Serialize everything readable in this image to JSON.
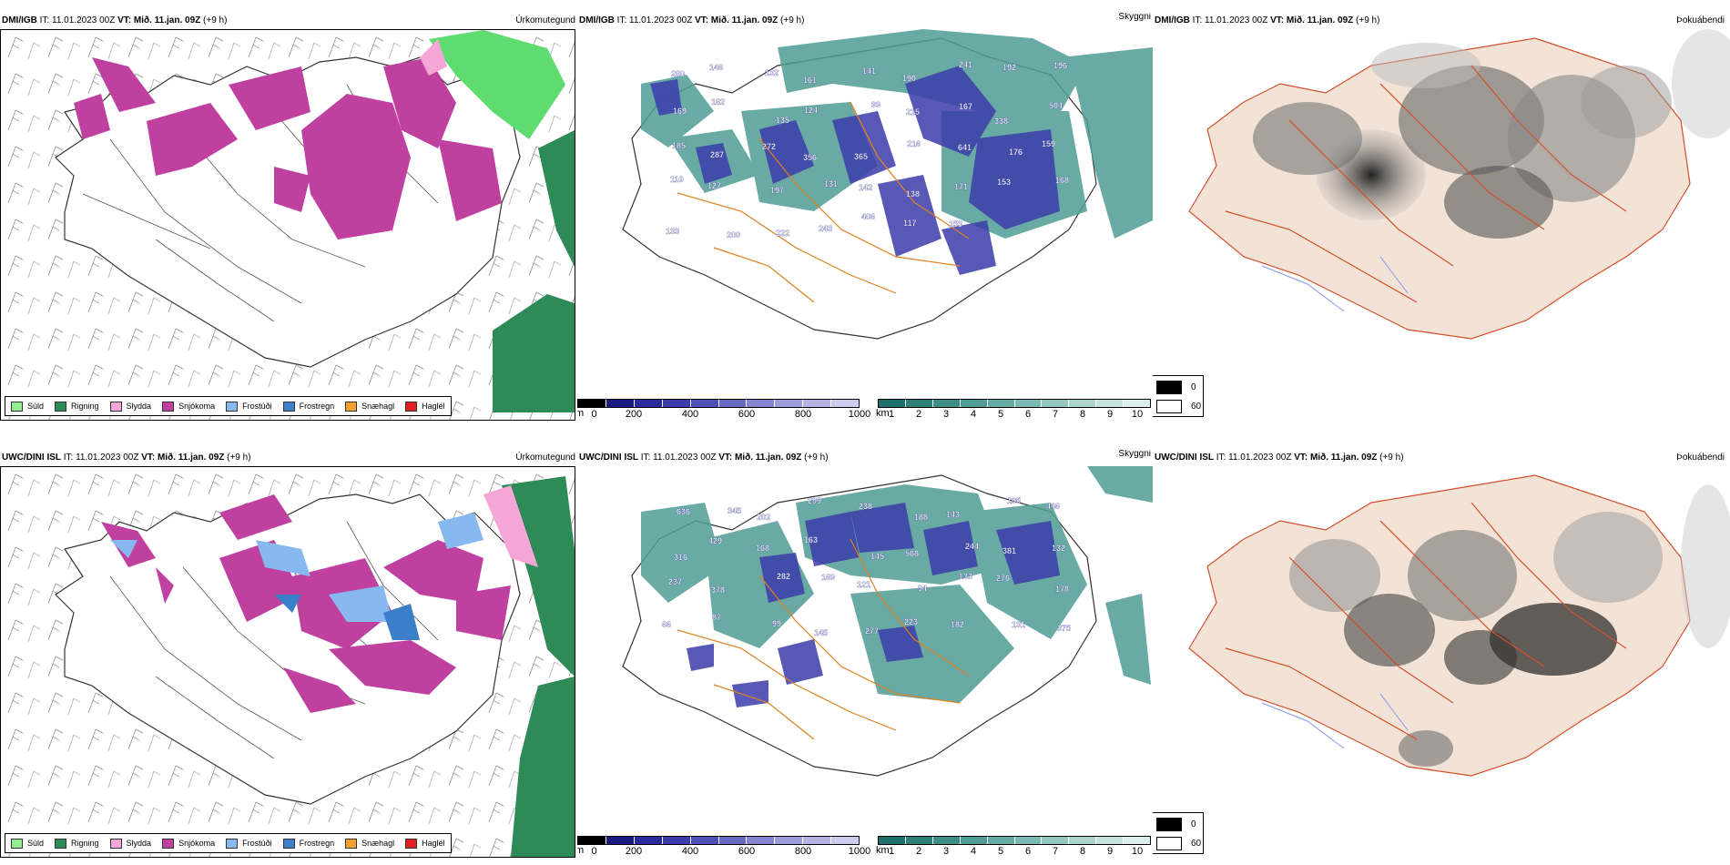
{
  "panels": [
    {
      "model": "DMI/IGB",
      "it": "IT: 11.01.2023 00Z",
      "vt_label": "VT:",
      "vt": "Mið. 11.jan. 09Z",
      "lead": "(+9 h)",
      "title": "Úrkomutegund"
    },
    {
      "model": "DMI/IGB",
      "it": "IT: 11.01.2023 00Z",
      "vt_label": "VT:",
      "vt": "Mið. 11.jan. 09Z",
      "lead": "(+9 h)",
      "title": "Skyggni"
    },
    {
      "model": "DMI/IGB",
      "it": "IT: 11.01.2023 00Z",
      "vt_label": "VT:",
      "vt": "Mið. 11.jan. 09Z",
      "lead": "(+9 h)",
      "title": "Þokuábendi"
    },
    {
      "model": "UWC/DINI ISL",
      "it": "IT: 11.01.2023 00Z",
      "vt_label": "VT:",
      "vt": "Mið. 11.jan. 09Z",
      "lead": "(+9 h)",
      "title": "Úrkomutegund"
    },
    {
      "model": "UWC/DINI ISL",
      "it": "IT: 11.01.2023 00Z",
      "vt_label": "VT:",
      "vt": "Mið. 11.jan. 09Z",
      "lead": "(+9 h)",
      "title": "Skyggni"
    },
    {
      "model": "UWC/DINI ISL",
      "it": "IT: 11.01.2023 00Z",
      "vt_label": "VT:",
      "vt": "Mið. 11.jan. 09Z",
      "lead": "(+9 h)",
      "title": "Þokuábendi"
    }
  ],
  "precip_legend": [
    {
      "label": "Súld",
      "color": "#90ee90"
    },
    {
      "label": "Rigning",
      "color": "#2e8b57"
    },
    {
      "label": "Slydda",
      "color": "#f4a6d7"
    },
    {
      "label": "Snjókoma",
      "color": "#c040a0"
    },
    {
      "label": "Frostúði",
      "color": "#87b9f0"
    },
    {
      "label": "Frostregn",
      "color": "#3a7fc8"
    },
    {
      "label": "Snæhagl",
      "color": "#f0a030"
    },
    {
      "label": "Haglél",
      "color": "#e02020"
    }
  ],
  "ceiling_scale": {
    "unit": "m",
    "ticks": [
      "0",
      "200",
      "400",
      "600",
      "800",
      "1000"
    ],
    "colors": [
      "#000000",
      "#1a1a80",
      "#2a2a9a",
      "#3c3cab",
      "#5050b8",
      "#6a6ac4",
      "#8484d0",
      "#9c9cda",
      "#b4b4e4",
      "#ccccee"
    ]
  },
  "visibility_scale": {
    "unit": "km",
    "ticks": [
      "1",
      "2",
      "3",
      "4",
      "5",
      "6",
      "7",
      "8",
      "9",
      "10"
    ],
    "colors": [
      "#1f6f6a",
      "#2e7f78",
      "#3d8e86",
      "#4f9d95",
      "#64aca4",
      "#7bbab2",
      "#93c8c0",
      "#abd6cf",
      "#c4e3de",
      "#dcefec"
    ]
  },
  "fog_legend": [
    {
      "label": "0",
      "color": "#000000"
    },
    {
      "label": "60",
      "color": "#ffffff"
    }
  ],
  "ceiling_labels_top": [
    "280",
    "146",
    "132",
    "161",
    "141",
    "190",
    "241",
    "192",
    "196",
    "169",
    "182",
    "135",
    "124",
    "99",
    "215",
    "167",
    "338",
    "504",
    "185",
    "287",
    "272",
    "356",
    "365",
    "216",
    "641",
    "176",
    "159",
    "110",
    "127",
    "197",
    "131",
    "142",
    "138",
    "171",
    "153",
    "168",
    "133",
    "200",
    "222",
    "243",
    "406",
    "117",
    "153"
  ],
  "ceiling_labels_bottom": [
    "636",
    "345",
    "202",
    "299",
    "238",
    "188",
    "143",
    "195",
    "446",
    "316",
    "429",
    "168",
    "163",
    "145",
    "568",
    "244",
    "381",
    "132",
    "237",
    "378",
    "282",
    "169",
    "121",
    "94",
    "133",
    "276",
    "178",
    "66",
    "87",
    "99",
    "145",
    "277",
    "223",
    "182",
    "131",
    "375"
  ]
}
